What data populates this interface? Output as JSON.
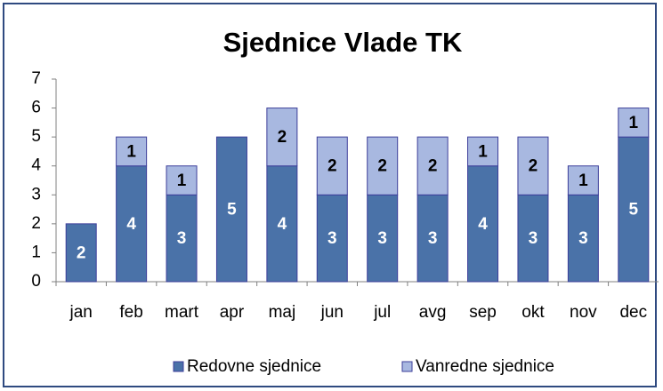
{
  "chart_data": {
    "type": "bar",
    "stacked": true,
    "title": "Sjednice Vlade TK",
    "categories": [
      "jan",
      "feb",
      "mart",
      "apr",
      "maj",
      "jun",
      "jul",
      "avg",
      "sep",
      "okt",
      "nov",
      "dec"
    ],
    "series": [
      {
        "name": "Redovne sjednice",
        "color": "#4a72a8",
        "values": [
          2,
          4,
          3,
          5,
          4,
          3,
          3,
          3,
          4,
          3,
          3,
          5
        ]
      },
      {
        "name": "Vanredne sjednice",
        "color": "#a8b8e0",
        "values": [
          null,
          1,
          1,
          null,
          2,
          2,
          2,
          2,
          1,
          2,
          1,
          1
        ]
      }
    ],
    "ylim": [
      0,
      7
    ],
    "yticks": [
      0,
      1,
      2,
      3,
      4,
      5,
      6,
      7
    ],
    "legend": "bottom"
  }
}
